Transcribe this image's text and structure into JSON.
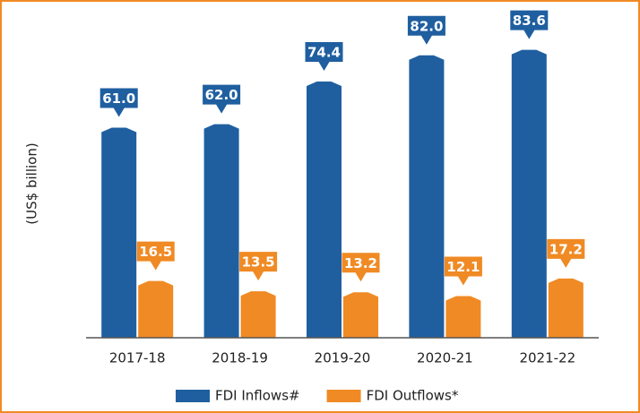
{
  "chart_data": {
    "type": "bar",
    "y_label": "(US$ billion)",
    "categories": [
      "2017-18",
      "2018-19",
      "2019-20",
      "2020-21",
      "2021-22"
    ],
    "series": [
      {
        "name": "FDI Inflows#",
        "color": "#1f5fa0",
        "values": [
          61.0,
          62.0,
          74.4,
          82.0,
          83.6
        ],
        "value_labels": [
          "61.0",
          "62.0",
          "74.4",
          "82.0",
          "83.6"
        ]
      },
      {
        "name": "FDI Outflows*",
        "color": "#f08a24",
        "values": [
          16.5,
          13.5,
          13.2,
          12.1,
          17.2
        ],
        "value_labels": [
          "16.5",
          "13.5",
          "13.2",
          "12.1",
          "17.2"
        ]
      }
    ],
    "ylim": [
      0,
      90
    ],
    "legend": "bottom"
  }
}
